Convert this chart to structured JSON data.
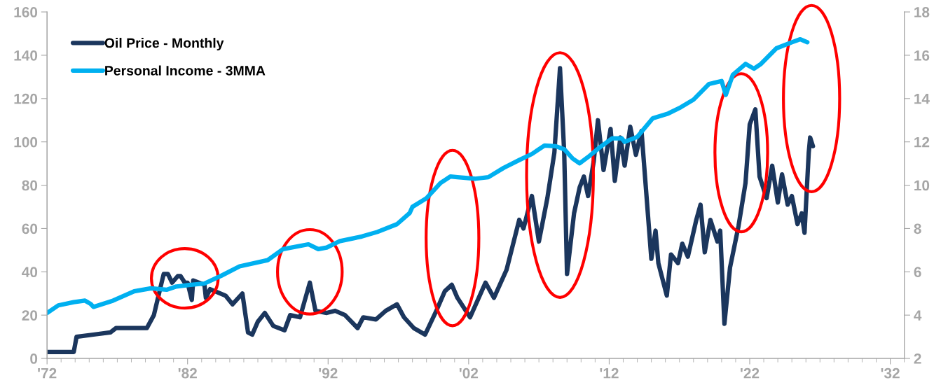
{
  "chart_data": {
    "type": "line",
    "legend": "top left",
    "grid": false,
    "xlim": [
      1972,
      2033
    ],
    "xticks": [
      {
        "value": 1972,
        "label": "'72"
      },
      {
        "value": 1982,
        "label": "'82"
      },
      {
        "value": 1992,
        "label": "'92"
      },
      {
        "value": 2002,
        "label": "'02"
      },
      {
        "value": 2012,
        "label": "'12"
      },
      {
        "value": 2022,
        "label": "'22"
      },
      {
        "value": 2032,
        "label": "'32"
      }
    ],
    "ylim": [
      0,
      160
    ],
    "yticks": [
      0,
      20,
      40,
      60,
      80,
      100,
      120,
      140,
      160
    ],
    "y2lim": [
      2,
      18
    ],
    "y2ticks": [
      2,
      4,
      6,
      8,
      10,
      12,
      14,
      16,
      18
    ],
    "series": [
      {
        "name": "Oil Price - Monthly",
        "color": "#1b365d",
        "x": [
          1972,
          1973.9,
          1974.1,
          1975.3,
          1976.5,
          1976.9,
          1977.6,
          1979.1,
          1979.6,
          1980.3,
          1980.6,
          1980.9,
          1981.3,
          1981.5,
          1981.8,
          1982,
          1982.3,
          1982.4,
          1983.2,
          1983.3,
          1983.6,
          1984.7,
          1985.2,
          1985.9,
          1986.3,
          1986.6,
          1987,
          1987.5,
          1988.1,
          1988.9,
          1989.3,
          1990,
          1990.7,
          1991.1,
          1991.9,
          1992.5,
          1993.2,
          1994.1,
          1994.5,
          1995.4,
          1996.1,
          1996.9,
          1997.4,
          1998.1,
          1998.9,
          1999.7,
          2000.3,
          2000.8,
          2001.2,
          2002.1,
          2003.2,
          2003.8,
          2004.7,
          2005.6,
          2005.9,
          2006.5,
          2007,
          2007.6,
          2008.1,
          2008.5,
          2008.8,
          2009,
          2009.5,
          2009.9,
          2010.2,
          2010.5,
          2010.9,
          2011.2,
          2011.6,
          2012.1,
          2012.4,
          2012.8,
          2013.1,
          2013.5,
          2013.9,
          2014.3,
          2015,
          2015.3,
          2015.5,
          2016.1,
          2016.4,
          2016.9,
          2017.2,
          2017.6,
          2018.2,
          2018.5,
          2018.8,
          2019.2,
          2019.7,
          2019.9,
          2020.2,
          2020.6,
          2021.2,
          2021.7,
          2022,
          2022.4,
          2022.7,
          2023.2,
          2023.6,
          2024,
          2024.3,
          2024.7,
          2025,
          2025.4,
          2025.7,
          2025.9,
          2026.2,
          2026.3,
          2026.5
        ],
        "values": [
          3,
          3,
          10,
          11,
          12,
          14,
          14,
          14,
          20,
          39,
          39,
          35,
          38,
          38,
          35,
          35,
          27,
          36,
          34,
          28,
          32,
          29,
          25,
          30,
          12,
          11,
          17,
          21,
          15,
          13,
          20,
          19,
          35,
          22,
          21,
          22,
          20,
          14,
          19,
          18,
          22,
          25,
          19,
          14,
          11,
          22,
          31,
          34,
          28,
          19,
          35,
          28,
          41,
          64,
          60,
          75,
          54,
          74,
          95,
          134,
          95,
          39,
          67,
          79,
          84,
          75,
          91,
          110,
          87,
          106,
          82,
          102,
          89,
          107,
          94,
          105,
          46,
          59,
          44,
          29,
          48,
          44,
          53,
          47,
          64,
          71,
          49,
          64,
          54,
          59,
          16,
          42,
          61,
          81,
          108,
          115,
          84,
          74,
          89,
          72,
          85,
          71,
          75,
          62,
          67,
          58,
          95,
          102,
          98
        ]
      },
      {
        "name": "Personal Income - 3MMA",
        "color": "#00b0f0",
        "axis": "y2",
        "x": [
          1972,
          1972.8,
          1973.9,
          1974.7,
          1975.1,
          1975.3,
          1976.7,
          1978.2,
          1979.4,
          1980.5,
          1981.2,
          1982.1,
          1983.2,
          1984.4,
          1985.7,
          1987.7,
          1988.8,
          1990.6,
          1991.3,
          1991.9,
          1992.8,
          1994.4,
          1995.5,
          1996.9,
          1997.8,
          1998,
          1999,
          2000,
          2000.7,
          2001.2,
          2002.5,
          2003.4,
          2004.5,
          2005.6,
          2006.5,
          2007.4,
          2008.2,
          2008.8,
          2009.4,
          2009.9,
          2010.5,
          2011.3,
          2012.2,
          2012.9,
          2013.1,
          2014,
          2015.1,
          2016.2,
          2017.1,
          2018,
          2019.1,
          2020,
          2020.3,
          2020.8,
          2021.7,
          2022.3,
          2022.8,
          2023.9,
          2025,
          2025.6,
          2026.1
        ],
        "values": [
          4.1,
          4.45,
          4.6,
          4.67,
          4.52,
          4.38,
          4.67,
          5.1,
          5.24,
          5.17,
          5.32,
          5.39,
          5.46,
          5.82,
          6.25,
          6.54,
          7.05,
          7.27,
          7.05,
          7.12,
          7.41,
          7.63,
          7.84,
          8.2,
          8.71,
          9.0,
          9.4,
          10.1,
          10.4,
          10.37,
          10.3,
          10.37,
          10.8,
          11.16,
          11.44,
          11.83,
          11.8,
          11.66,
          11.23,
          11.01,
          11.3,
          11.73,
          12.16,
          12.16,
          12.0,
          12.23,
          13.09,
          13.31,
          13.6,
          13.95,
          14.67,
          14.81,
          14.17,
          15.1,
          15.6,
          15.38,
          15.6,
          16.32,
          16.6,
          16.74,
          16.6
        ]
      }
    ]
  }
}
